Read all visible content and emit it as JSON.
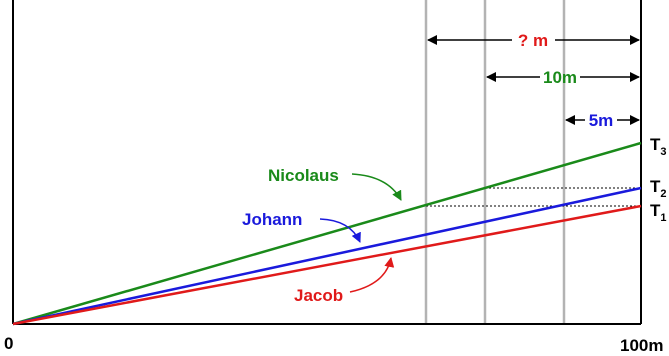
{
  "axis": {
    "origin_label": "0",
    "end_label": "100m"
  },
  "distances": {
    "unknown": "? m",
    "ten": "10m",
    "five": "5m"
  },
  "runners": [
    {
      "name": "Nicolaus",
      "color": "#1a8a1a"
    },
    {
      "name": "Johann",
      "color": "#1a1adc"
    },
    {
      "name": "Jacob",
      "color": "#e01a1a"
    }
  ],
  "times": {
    "t3": {
      "base": "T",
      "sub": "3"
    },
    "t2": {
      "base": "T",
      "sub": "2"
    },
    "t1": {
      "base": "T",
      "sub": "1"
    }
  },
  "colors": {
    "axis": "#000000",
    "guide": "#b3b3b3",
    "unknown_text": "#e01a1a",
    "ten_text": "#1a8a1a",
    "five_text": "#1a1adc"
  }
}
